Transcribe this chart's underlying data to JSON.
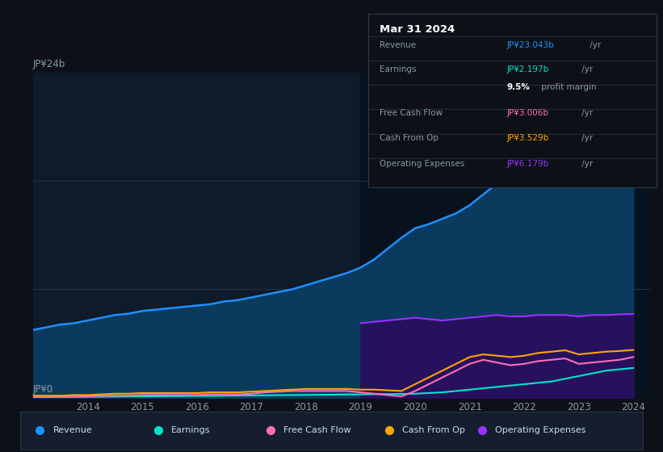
{
  "bg_color": "#0d1117",
  "plot_bg_color": "#0d1b2a",
  "grid_color": "#1e2d3d",
  "title_box_date": "Mar 31 2024",
  "ylabel_top": "JP¥24b",
  "ylabel_bottom": "JP¥0",
  "years": [
    2013,
    2013.25,
    2013.5,
    2013.75,
    2014,
    2014.25,
    2014.5,
    2014.75,
    2015,
    2015.25,
    2015.5,
    2015.75,
    2016,
    2016.25,
    2016.5,
    2016.75,
    2017,
    2017.25,
    2017.5,
    2017.75,
    2018,
    2018.25,
    2018.5,
    2018.75,
    2019,
    2019.25,
    2019.5,
    2019.75,
    2020,
    2020.25,
    2020.5,
    2020.75,
    2021,
    2021.25,
    2021.5,
    2021.75,
    2022,
    2022.25,
    2022.5,
    2022.75,
    2023,
    2023.25,
    2023.5,
    2023.75,
    2024
  ],
  "revenue": [
    5.0,
    5.2,
    5.4,
    5.5,
    5.7,
    5.9,
    6.1,
    6.2,
    6.4,
    6.5,
    6.6,
    6.7,
    6.8,
    6.9,
    7.1,
    7.2,
    7.4,
    7.6,
    7.8,
    8.0,
    8.3,
    8.6,
    8.9,
    9.2,
    9.6,
    10.2,
    11.0,
    11.8,
    12.5,
    12.8,
    13.2,
    13.6,
    14.2,
    15.0,
    15.8,
    16.5,
    17.2,
    18.0,
    18.8,
    19.5,
    20.2,
    21.0,
    21.8,
    22.5,
    23.043
  ],
  "earnings": [
    0.05,
    0.05,
    0.06,
    0.06,
    0.07,
    0.08,
    0.09,
    0.1,
    0.1,
    0.11,
    0.12,
    0.13,
    0.14,
    0.14,
    0.15,
    0.16,
    0.17,
    0.18,
    0.19,
    0.2,
    0.21,
    0.22,
    0.23,
    0.24,
    0.25,
    0.26,
    0.27,
    0.28,
    0.3,
    0.35,
    0.4,
    0.5,
    0.6,
    0.7,
    0.8,
    0.9,
    1.0,
    1.1,
    1.2,
    1.4,
    1.6,
    1.8,
    2.0,
    2.1,
    2.197
  ],
  "free_cash_flow": [
    0.1,
    0.1,
    0.1,
    0.1,
    0.1,
    0.15,
    0.15,
    0.15,
    0.2,
    0.2,
    0.2,
    0.2,
    0.2,
    0.25,
    0.25,
    0.25,
    0.3,
    0.4,
    0.45,
    0.5,
    0.5,
    0.5,
    0.5,
    0.5,
    0.4,
    0.3,
    0.2,
    0.1,
    0.5,
    1.0,
    1.5,
    2.0,
    2.5,
    2.8,
    2.6,
    2.4,
    2.5,
    2.7,
    2.8,
    2.9,
    2.5,
    2.6,
    2.7,
    2.8,
    3.006
  ],
  "cash_from_op": [
    0.15,
    0.15,
    0.15,
    0.2,
    0.2,
    0.25,
    0.3,
    0.3,
    0.35,
    0.35,
    0.35,
    0.35,
    0.35,
    0.4,
    0.4,
    0.4,
    0.45,
    0.5,
    0.55,
    0.6,
    0.65,
    0.65,
    0.65,
    0.65,
    0.6,
    0.6,
    0.55,
    0.5,
    1.0,
    1.5,
    2.0,
    2.5,
    3.0,
    3.2,
    3.1,
    3.0,
    3.1,
    3.3,
    3.4,
    3.5,
    3.2,
    3.3,
    3.4,
    3.45,
    3.529
  ],
  "operating_expenses": [
    0.0,
    0.0,
    0.0,
    0.0,
    0.0,
    0.0,
    0.0,
    0.0,
    0.0,
    0.0,
    0.0,
    0.0,
    0.0,
    0.0,
    0.0,
    0.0,
    0.0,
    0.0,
    0.0,
    0.0,
    0.0,
    0.0,
    0.0,
    0.0,
    5.5,
    5.6,
    5.7,
    5.8,
    5.9,
    5.8,
    5.7,
    5.8,
    5.9,
    6.0,
    6.1,
    6.0,
    6.0,
    6.1,
    6.1,
    6.1,
    6.0,
    6.1,
    6.1,
    6.15,
    6.179
  ],
  "revenue_color": "#1e90ff",
  "revenue_fill": "#0a3a5e",
  "earnings_color": "#00e5cc",
  "free_cash_flow_color": "#ff6eb4",
  "cash_from_op_color": "#ffa500",
  "operating_expenses_color": "#9b30ff",
  "operating_expenses_fill": "#2d0a5e",
  "xtick_labels": [
    "2014",
    "2015",
    "2016",
    "2017",
    "2018",
    "2019",
    "2020",
    "2021",
    "2022",
    "2023",
    "2024"
  ],
  "xtick_positions": [
    2014,
    2015,
    2016,
    2017,
    2018,
    2019,
    2020,
    2021,
    2022,
    2023,
    2024
  ],
  "legend": [
    {
      "label": "Revenue",
      "color": "#1e90ff"
    },
    {
      "label": "Earnings",
      "color": "#00e5cc"
    },
    {
      "label": "Free Cash Flow",
      "color": "#ff6eb4"
    },
    {
      "label": "Cash From Op",
      "color": "#ffa500"
    },
    {
      "label": "Operating Expenses",
      "color": "#9b30ff"
    }
  ],
  "highlight_x_start": 2019,
  "highlight_color": "#060e1a",
  "ylim": [
    0,
    24
  ],
  "xlim": [
    2013,
    2024.3
  ],
  "box_rows": [
    {
      "label": "Revenue",
      "value": "JP¥23.043b",
      "value_color": "#1e90ff",
      "suffix": " /yr"
    },
    {
      "label": "Earnings",
      "value": "JP¥2.197b",
      "value_color": "#00e5cc",
      "suffix": " /yr"
    },
    {
      "label": "",
      "value": "9.5%",
      "value_color": "#ffffff",
      "suffix": " profit margin",
      "bold": true
    },
    {
      "label": "Free Cash Flow",
      "value": "JP¥3.006b",
      "value_color": "#ff6eb4",
      "suffix": " /yr"
    },
    {
      "label": "Cash From Op",
      "value": "JP¥3.529b",
      "value_color": "#ffa500",
      "suffix": " /yr"
    },
    {
      "label": "Operating Expenses",
      "value": "JP¥6.179b",
      "value_color": "#9b30ff",
      "suffix": " /yr"
    }
  ]
}
